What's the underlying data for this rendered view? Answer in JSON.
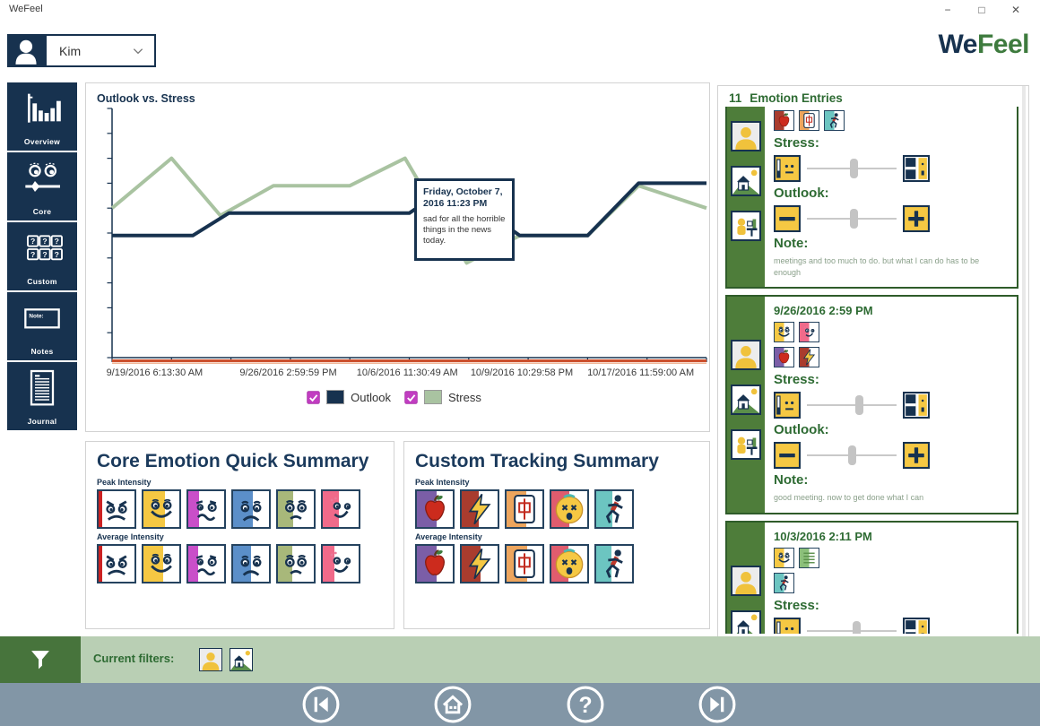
{
  "window": {
    "title": "WeFeel",
    "minimize": "−",
    "maximize": "□",
    "close": "✕"
  },
  "header": {
    "user": "Kim",
    "logo_we": "We",
    "logo_feel": "Feel"
  },
  "sidebar": {
    "items": [
      {
        "id": "overview",
        "label": "Overview",
        "icon": "bar-chart"
      },
      {
        "id": "core",
        "label": "Core",
        "icon": "core-face"
      },
      {
        "id": "custom",
        "label": "Custom",
        "icon": "custom-grid"
      },
      {
        "id": "notes",
        "label": "Notes",
        "icon": "note-box"
      },
      {
        "id": "journal",
        "label": "Journal",
        "icon": "journal-doc"
      }
    ]
  },
  "chart": {
    "title": "Outlook vs. Stress",
    "tooltip": {
      "title": "Friday, October 7, 2016 11:23 PM",
      "body": "sad for all the horrible things in the news today."
    }
  },
  "chart_data": {
    "type": "line",
    "title": "Outlook vs. Stress",
    "xlabel": "",
    "ylabel": "",
    "ylim": [
      0,
      10
    ],
    "x_range_days": [
      0,
      28
    ],
    "grid": false,
    "legend_position": "bottom",
    "x_ticks": [
      "9/19/2016 6:13:30 AM",
      "9/26/2016 2:59:59 PM",
      "10/6/2016 11:30:49 AM",
      "10/9/2016 10:29:58 PM",
      "10/17/2016 11:59:00 AM"
    ],
    "x_tick_days": [
      2.0,
      8.3,
      13.9,
      19.3,
      24.9
    ],
    "series": [
      {
        "name": "Stress",
        "color": "#a9c3a1",
        "checked": true,
        "points": [
          [
            0,
            6.0
          ],
          [
            2.8,
            8.0
          ],
          [
            5.1,
            5.7
          ],
          [
            7.6,
            6.9
          ],
          [
            11.2,
            6.9
          ],
          [
            13.8,
            8.0
          ],
          [
            16.7,
            3.8
          ],
          [
            19.2,
            4.9
          ],
          [
            22.4,
            4.9
          ],
          [
            24.8,
            6.9
          ],
          [
            28,
            6.0
          ]
        ]
      },
      {
        "name": "Outlook",
        "color": "#17324f",
        "checked": true,
        "points": [
          [
            0,
            4.9
          ],
          [
            3.8,
            4.9
          ],
          [
            5.5,
            5.8
          ],
          [
            14,
            5.8
          ],
          [
            15.9,
            6.9
          ],
          [
            19.2,
            4.9
          ],
          [
            22.4,
            4.9
          ],
          [
            24.8,
            7.0
          ],
          [
            28,
            7.0
          ]
        ]
      }
    ],
    "legend_order": [
      "Outlook",
      "Stress"
    ]
  },
  "core_summary": {
    "title": "Core Emotion Quick Summary",
    "peak_label": "Peak Intensity",
    "average_label": "Average Intensity",
    "peak": [
      {
        "emotion": "angry",
        "icon": "face-angry",
        "color": "#cc2222",
        "fill": 0.1
      },
      {
        "emotion": "happy",
        "icon": "face-happy",
        "color": "#f5c843",
        "fill": 0.6
      },
      {
        "emotion": "disgusted",
        "icon": "face-disgust",
        "color": "#c94fc9",
        "fill": 0.3
      },
      {
        "emotion": "sad",
        "icon": "face-sad",
        "color": "#5b8fc9",
        "fill": 0.55
      },
      {
        "emotion": "worried",
        "icon": "face-worried",
        "color": "#a8b87a",
        "fill": 0.42
      },
      {
        "emotion": "embarrassed",
        "icon": "face-smirk",
        "color": "#f06a8a",
        "fill": 0.45
      }
    ],
    "average": [
      {
        "emotion": "angry",
        "icon": "face-angry",
        "color": "#cc2222",
        "fill": 0.1
      },
      {
        "emotion": "happy",
        "icon": "face-happy",
        "color": "#f5c843",
        "fill": 0.55
      },
      {
        "emotion": "disgusted",
        "icon": "face-disgust",
        "color": "#c94fc9",
        "fill": 0.28
      },
      {
        "emotion": "sad",
        "icon": "face-sad",
        "color": "#5b8fc9",
        "fill": 0.5
      },
      {
        "emotion": "worried",
        "icon": "face-worried",
        "color": "#a8b87a",
        "fill": 0.4
      },
      {
        "emotion": "embarrassed",
        "icon": "face-smirk",
        "color": "#f06a8a",
        "fill": 0.33
      }
    ]
  },
  "custom_summary": {
    "title": "Custom Tracking Summary",
    "peak_label": "Peak Intensity",
    "average_label": "Average Intensity",
    "peak": [
      {
        "emotion": "food",
        "icon": "apple",
        "color": "#7b5ea7",
        "fill": 0.55
      },
      {
        "emotion": "energy",
        "icon": "lightning",
        "color": "#a93c2e",
        "fill": 0.48
      },
      {
        "emotion": "mahjong",
        "icon": "mahjong",
        "color": "#eda55d",
        "fill": 0.55
      },
      {
        "emotion": "dizzy",
        "icon": "dizzy",
        "color": "#e05c6e",
        "fill": 0.5
      },
      {
        "emotion": "exercise",
        "icon": "runner",
        "color": "#6cc5c1",
        "fill": 0.45
      }
    ],
    "average": [
      {
        "emotion": "food",
        "icon": "apple",
        "color": "#7b5ea7",
        "fill": 0.55
      },
      {
        "emotion": "energy",
        "icon": "lightning",
        "color": "#a93c2e",
        "fill": 0.52
      },
      {
        "emotion": "mahjong",
        "icon": "mahjong",
        "color": "#eda55d",
        "fill": 0.58
      },
      {
        "emotion": "dizzy",
        "icon": "dizzy",
        "color": "#e05c6e",
        "fill": 0.48
      },
      {
        "emotion": "exercise",
        "icon": "runner",
        "color": "#6cc5c1",
        "fill": 0.42
      }
    ]
  },
  "entries_panel": {
    "count": "11",
    "title": "Emotion Entries",
    "labels": {
      "stress": "Stress:",
      "outlook": "Outlook:",
      "note": "Note:"
    },
    "entries": [
      {
        "clipped": true,
        "context_icons": [
          "person-ctx",
          "home-ctx",
          "work-ctx"
        ],
        "tile_rows": [
          [
            {
              "icon": "face-happy",
              "band": "#f5c843"
            },
            {
              "icon": "face-sad",
              "band": "#5b8fc9"
            },
            {
              "icon": "face-worried",
              "band": "#a8b87a"
            }
          ],
          [
            {
              "icon": "apple",
              "band": "#a93c2e"
            },
            {
              "icon": "mahjong",
              "band": "#eda55d"
            },
            {
              "icon": "runner",
              "band": "#6cc5c1"
            }
          ]
        ],
        "stress": 0.52,
        "outlook": 0.52,
        "note": "meetings and too much to do. but what I can do has to be enough"
      },
      {
        "timestamp": "9/26/2016 2:59 PM",
        "context_icons": [
          "person-ctx",
          "home-ctx",
          "work-ctx"
        ],
        "tile_rows": [
          [
            {
              "icon": "face-happy",
              "band": "#f5c843"
            },
            {
              "icon": "face-smirk",
              "band": "#f06a8a"
            }
          ],
          [
            {
              "icon": "apple",
              "band": "#7b5ea7"
            },
            {
              "icon": "lightning",
              "band": "#a93c2e"
            }
          ]
        ],
        "stress": 0.58,
        "outlook": 0.5,
        "note": "good meeting.  now to get done what I can"
      },
      {
        "timestamp": "10/3/2016 2:11 PM",
        "context_icons": [
          "person-ctx",
          "home-ctx"
        ],
        "tile_rows": [
          [
            {
              "icon": "face-happy",
              "band": "#f5c843"
            },
            {
              "icon": "list",
              "band": "#8bbf7a"
            }
          ],
          [
            {
              "icon": "runner",
              "band": "#6cc5c1"
            }
          ]
        ],
        "stress": 0.55
      }
    ]
  },
  "filter_bar": {
    "label": "Current filters:",
    "filters": [
      "person-ctx",
      "home-ctx"
    ]
  },
  "nav": {
    "buttons": [
      {
        "id": "skip-back",
        "icon": "skip-back",
        "x": 336
      },
      {
        "id": "home",
        "icon": "nav-home",
        "x": 483
      },
      {
        "id": "help",
        "icon": "question",
        "x": 631
      },
      {
        "id": "skip-forward",
        "icon": "skip-forward",
        "x": 778
      }
    ]
  },
  "colors": {
    "navy": "#17324f",
    "stress_green": "#a9c3a1",
    "dark_green_text": "#2e6b33",
    "card_green": "#4e7d3a",
    "filter_bg": "#b9cfb4",
    "filter_btn": "#47743c",
    "navbar": "#8296a6",
    "axis_orange": "#cc4f2c",
    "checkbox_magenta": "#c13dc1",
    "tile_yellow": "#f5c843"
  }
}
